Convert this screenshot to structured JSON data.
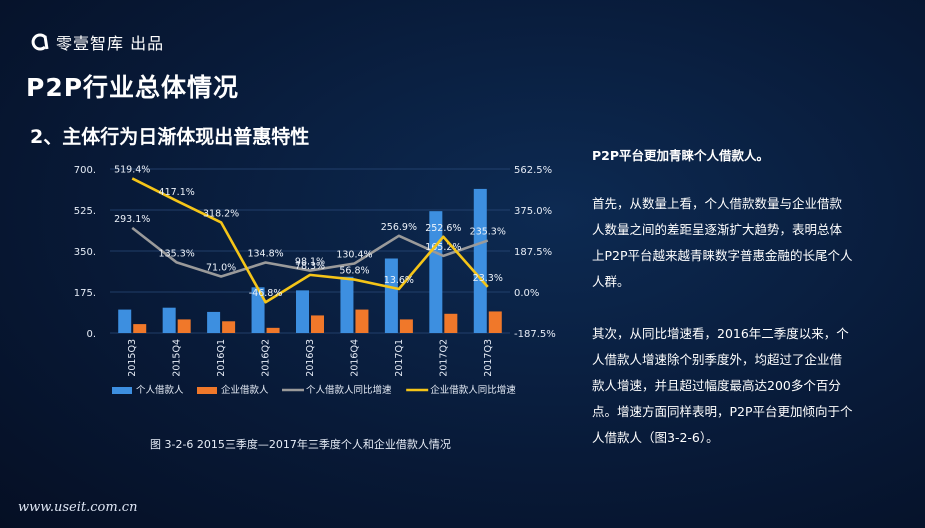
{
  "brand": {
    "logo_text": "零壹智库 出品"
  },
  "header": {
    "title": "P2P行业总体情况",
    "subtitle": "2、主体行为日渐体现出普惠特性"
  },
  "caption": "图 3-2-6  2015三季度—2017年三季度个人和企业借款人情况",
  "panel": {
    "lead": "P2P平台更加青睐个人借款人。",
    "para1": "首先，从数量上看，个人借款数量与企业借款人数量之间的差距呈逐渐扩大趋势，表明总体上P2P平台越来越青睐数字普惠金融的长尾个人人群。",
    "para2": "其次，从同比增速看，2016年二季度以来，个人借款人增速除个别季度外，均超过了企业借款人增速，并且超过幅度最高达200多个百分点。增速方面同样表明，P2P平台更加倾向于个人借款人（图3-2-6）。"
  },
  "watermark": "www.useit.com.cn",
  "chart_data": {
    "type": "bar",
    "categories": [
      "2015Q3",
      "2015Q4",
      "2016Q1",
      "2016Q2",
      "2016Q3",
      "2016Q4",
      "2017Q1",
      "2017Q2",
      "2017Q3"
    ],
    "series": [
      {
        "name": "个人借款人",
        "kind": "bar",
        "axis": "left",
        "color": "#3d8fe0",
        "values": [
          100,
          108,
          90,
          195,
          182,
          240,
          318,
          520,
          615
        ]
      },
      {
        "name": "企业借款人",
        "kind": "bar",
        "axis": "left",
        "color": "#f0782a",
        "values": [
          38,
          58,
          50,
          22,
          75,
          100,
          58,
          82,
          92
        ]
      },
      {
        "name": "个人借款人同比增速",
        "kind": "line",
        "axis": "right",
        "color": "#9a9a9a",
        "values": [
          293.1,
          135.3,
          71.0,
          134.8,
          98.1,
          130.4,
          256.9,
          165.2,
          235.3
        ],
        "labels": [
          "293.1%",
          "135.3%",
          "71.0%",
          "134.8%",
          "98.1%",
          "130.4%",
          "256.9%",
          "165.2%",
          "235.3%"
        ]
      },
      {
        "name": "企业借款人同比增速",
        "kind": "line",
        "axis": "right",
        "color": "#f5c518",
        "values": [
          519.4,
          417.1,
          318.2,
          -46.8,
          78.3,
          56.8,
          13.6,
          252.6,
          23.3
        ],
        "labels": [
          "519.4%",
          "417.1%",
          "318.2%",
          "-46.8%",
          "78.3%",
          "56.8%",
          "13.6%",
          "252.6%",
          "23.3%"
        ]
      }
    ],
    "left_axis": {
      "ticks": [
        "700.",
        "525.",
        "350.",
        "175.",
        "0."
      ],
      "values": [
        700,
        525,
        350,
        175,
        0
      ],
      "ylim": [
        0,
        700
      ]
    },
    "right_axis": {
      "ticks": [
        "562.5%",
        "375.0%",
        "187.5%",
        "0.0%",
        "-187.5%"
      ],
      "values": [
        562.5,
        375,
        187.5,
        0,
        -187.5
      ],
      "ylim": [
        -187.5,
        562.5
      ]
    },
    "legend_position": "bottom"
  }
}
